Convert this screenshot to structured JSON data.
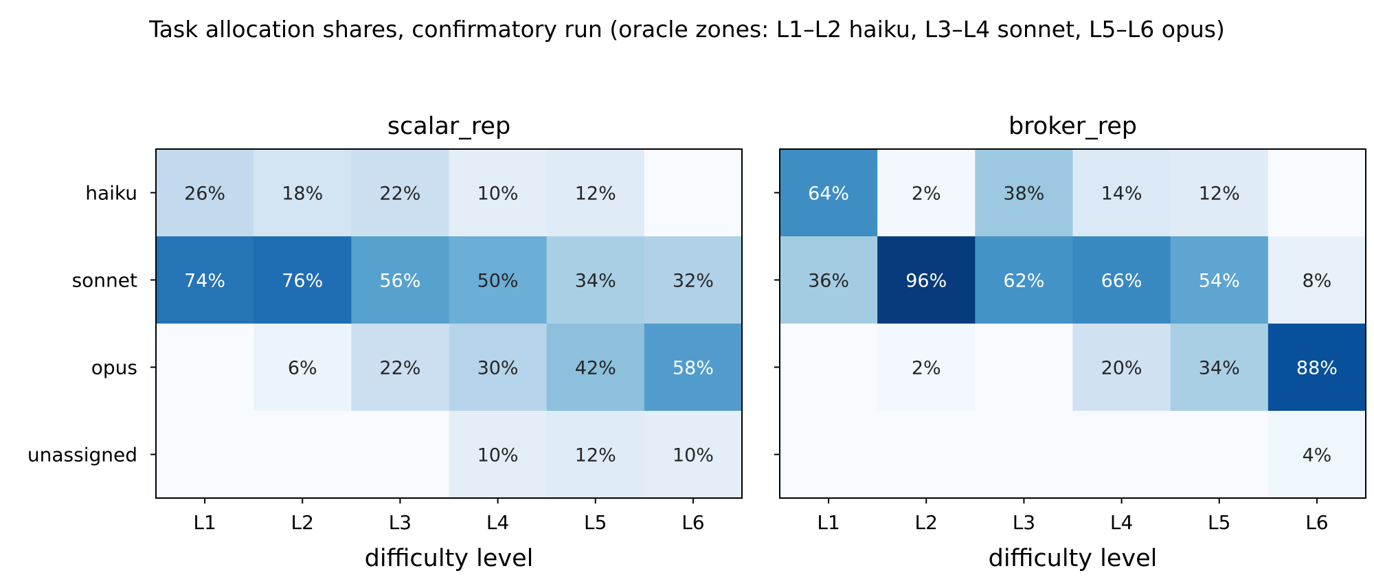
{
  "title": "Task allocation shares, confirmatory run (oracle zones: L1–L2 haiku, L3–L4 sonnet, L5–L6 opus)",
  "chart_data": [
    {
      "type": "heatmap",
      "title": "scalar_rep",
      "xlabel": "difficulty level",
      "ylabel": "",
      "x": [
        "L1",
        "L2",
        "L3",
        "L4",
        "L5",
        "L6"
      ],
      "y": [
        "haiku",
        "sonnet",
        "opus",
        "unassigned"
      ],
      "values": [
        [
          26,
          18,
          22,
          10,
          12,
          0
        ],
        [
          74,
          76,
          56,
          50,
          34,
          32
        ],
        [
          0,
          6,
          22,
          30,
          42,
          58
        ],
        [
          0,
          0,
          0,
          10,
          12,
          10
        ]
      ],
      "value_format": "percent",
      "zero_labels_shown": false,
      "colormap": "Blues",
      "color_range": [
        0,
        100
      ]
    },
    {
      "type": "heatmap",
      "title": "broker_rep",
      "xlabel": "difficulty level",
      "ylabel": "",
      "x": [
        "L1",
        "L2",
        "L3",
        "L4",
        "L5",
        "L6"
      ],
      "y": [
        "haiku",
        "sonnet",
        "opus",
        "unassigned"
      ],
      "values": [
        [
          64,
          2,
          38,
          14,
          12,
          0
        ],
        [
          36,
          96,
          62,
          66,
          54,
          8
        ],
        [
          0,
          2,
          0,
          20,
          34,
          88
        ],
        [
          0,
          0,
          0,
          0,
          0,
          4
        ]
      ],
      "value_format": "percent",
      "zero_labels_shown": false,
      "colormap": "Blues",
      "color_range": [
        0,
        100
      ]
    }
  ]
}
